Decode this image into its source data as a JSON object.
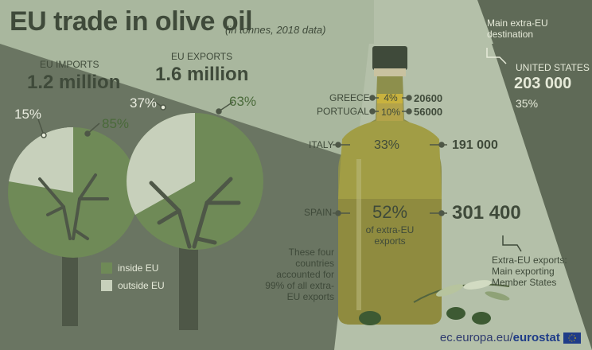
{
  "header": {
    "title": "EU trade in olive oil",
    "subtitle": "(in tonnes, 2018 data)"
  },
  "imports": {
    "label": "EU IMPORTS",
    "total": "1.2 million",
    "outside_pct": "15%",
    "inside_pct": "85%"
  },
  "exports": {
    "label": "EU EXPORTS",
    "total": "1.6 million",
    "outside_pct": "37%",
    "inside_pct": "63%"
  },
  "legend": {
    "inside": "inside EU",
    "outside": "outside EU",
    "inside_color": "#6f8a57",
    "outside_color": "#c7d0bb"
  },
  "destination": {
    "caption": "Main extra-EU destination",
    "country": "UNITED STATES",
    "value": "203 000",
    "pct": "35%"
  },
  "member_states": [
    {
      "country": "GREECE",
      "pct": "4%",
      "value": "20600"
    },
    {
      "country": "PORTUGAL",
      "pct": "10%",
      "value": "56000"
    },
    {
      "country": "ITALY",
      "pct": "33%",
      "value": "191 000"
    },
    {
      "country": "SPAIN",
      "pct": "52%",
      "value": "301 400"
    }
  ],
  "spain_note": "of extra-EU exports",
  "four_countries_note": "These four countries accounted for 99% of all extra-EU exports",
  "bottle_caption": "Extra-EU exports: Main exporting Member States",
  "footer": {
    "site": "ec.europa.eu/",
    "brand": "eurostat"
  },
  "colors": {
    "background": "#a9b79e",
    "dark_panel": "#5f6a57",
    "tree_dark": "#6f8a57",
    "tree_light": "#c7d0bb",
    "bottle_oil": "#9c9a43",
    "text_dark": "#3f4a3a"
  }
}
